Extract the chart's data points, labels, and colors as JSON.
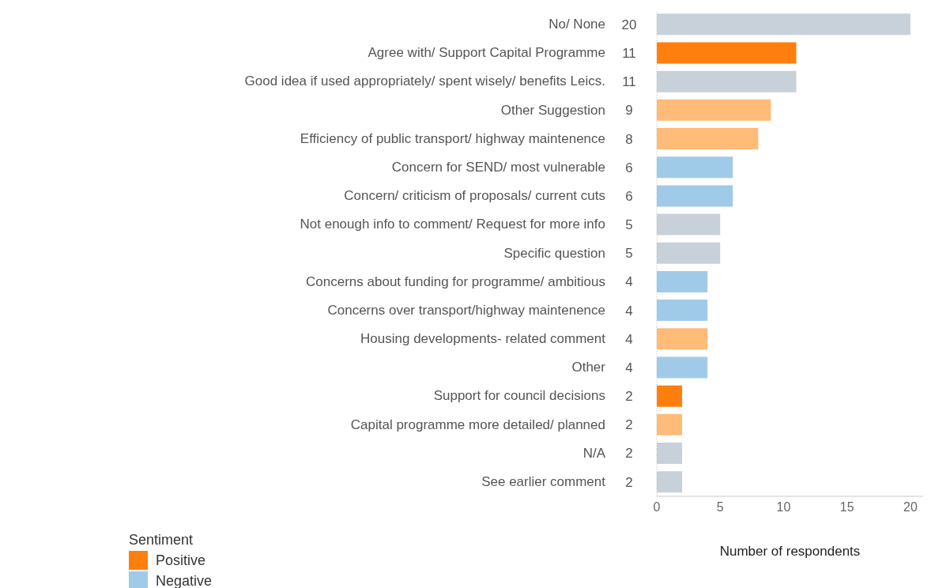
{
  "chart_data": {
    "type": "bar",
    "orientation": "horizontal",
    "stacked": true,
    "xlabel": "Number of respondents",
    "legend_title": "Sentiment",
    "legend": "bottom left",
    "grid": false,
    "data_labels": true,
    "categories": [
      "No/ None",
      "Agree with/ Support Capital Programme",
      "Good idea if used appropriately/ spent wisely/ benefits Leics.",
      "Other Suggestion",
      "Efficiency of public transport/ highway maintenence",
      "Concern for SEND/ most vulnerable",
      "Concern/ criticism of proposals/ current cuts",
      "Not enough info to comment/ Request for more info",
      "Specific question",
      "Concerns about funding for programme/ ambitious",
      "Concerns over transport/highway maintenence",
      "Housing developments- related comment",
      "Other",
      "Support for council decisions",
      "Capital programme more detailed/ planned",
      "N/A",
      "See earlier comment"
    ],
    "xlim": [
      0,
      21
    ],
    "xticks": [
      0,
      5,
      10,
      15,
      20
    ],
    "series": [
      {
        "name": "Positive",
        "color": "#ff7f0e",
        "values": [
          null,
          11,
          null,
          null,
          null,
          null,
          null,
          null,
          null,
          null,
          null,
          null,
          null,
          2,
          null,
          null,
          null
        ]
      },
      {
        "name": "Negative",
        "color": "#a0cbe8",
        "values": [
          null,
          null,
          null,
          null,
          null,
          6,
          6,
          null,
          null,
          4,
          4,
          null,
          4,
          null,
          null,
          null,
          null
        ]
      },
      {
        "color": "#ffbb78",
        "values": [
          null,
          null,
          null,
          9,
          8,
          null,
          null,
          null,
          null,
          null,
          null,
          4,
          null,
          null,
          2,
          null,
          null
        ]
      },
      {
        "color": "#c8d0d9",
        "values": [
          20,
          null,
          11,
          null,
          null,
          null,
          null,
          5,
          5,
          null,
          null,
          null,
          null,
          null,
          null,
          2,
          2
        ]
      }
    ]
  }
}
